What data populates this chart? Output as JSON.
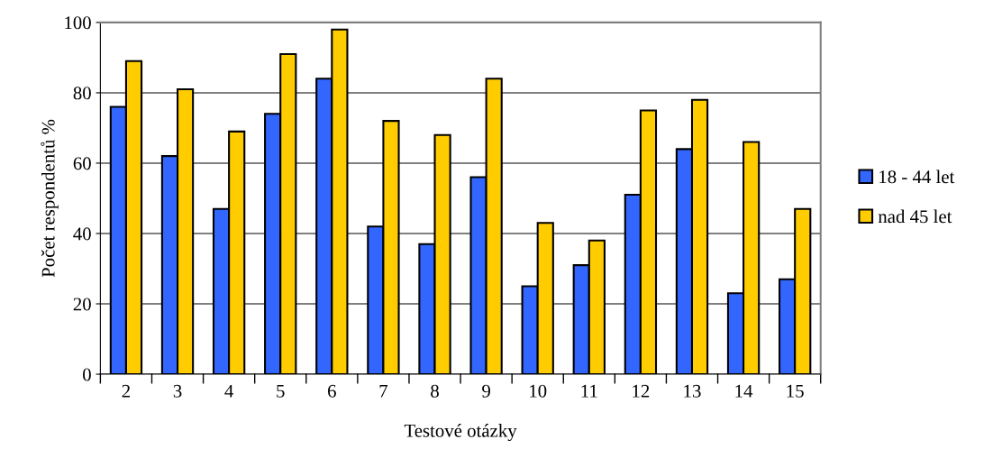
{
  "chart_data": {
    "type": "bar",
    "xlabel": "Testové otázky",
    "ylabel": "Počet respondentů %",
    "categories": [
      "2",
      "3",
      "4",
      "5",
      "6",
      "7",
      "8",
      "9",
      "10",
      "11",
      "12",
      "13",
      "14",
      "15"
    ],
    "series": [
      {
        "name": "18 - 44 let",
        "color": "#3366ff",
        "values": [
          76,
          62,
          47,
          74,
          84,
          42,
          37,
          56,
          25,
          31,
          51,
          64,
          23,
          27
        ]
      },
      {
        "name": "nad 45 let",
        "color": "#ffcc00",
        "values": [
          89,
          81,
          69,
          91,
          98,
          72,
          68,
          84,
          43,
          38,
          75,
          78,
          66,
          47
        ]
      }
    ],
    "ylim": [
      0,
      100
    ],
    "yticks": [
      0,
      20,
      40,
      60,
      80,
      100
    ],
    "grid": "y",
    "legend": "right"
  }
}
